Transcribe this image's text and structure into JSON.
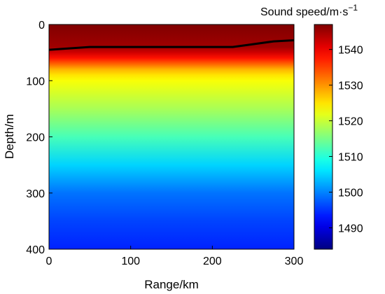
{
  "chart_data": {
    "type": "heatmap",
    "title": "",
    "xlabel": "Range/km",
    "ylabel": "Depth/m",
    "xlim": [
      0,
      300
    ],
    "ylim": [
      400,
      0
    ],
    "y_reversed": true,
    "xticks": [
      0,
      100,
      200,
      300
    ],
    "yticks": [
      0,
      100,
      200,
      300,
      400
    ],
    "grid": false,
    "colormap": "jet",
    "colorbar": {
      "title": "Sound speed/m·s",
      "title_exponent": "−1",
      "range": [
        1484,
        1547
      ],
      "ticks": [
        1490,
        1500,
        1510,
        1520,
        1530,
        1540
      ],
      "placement": "right"
    },
    "sound_speed_profile": {
      "depth_m": [
        0,
        20,
        40,
        50,
        60,
        70,
        80,
        90,
        100,
        120,
        150,
        200,
        250,
        300,
        350,
        400
      ],
      "speed_m_s": [
        1547,
        1546,
        1545,
        1542,
        1538,
        1533,
        1528,
        1525,
        1523,
        1521,
        1518,
        1512,
        1505,
        1499,
        1496,
        1494
      ]
    },
    "line_series": {
      "color": "#000000",
      "x": [
        0,
        50,
        100,
        150,
        200,
        225,
        250,
        275,
        300
      ],
      "y": [
        45,
        40,
        40,
        40,
        40,
        40,
        35,
        30,
        28
      ]
    }
  }
}
